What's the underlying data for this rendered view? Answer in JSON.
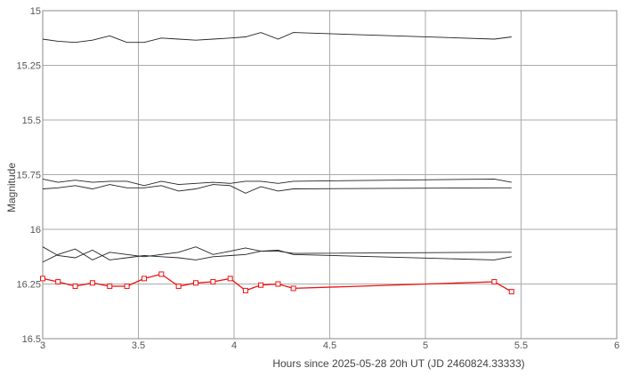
{
  "chart_data": {
    "type": "line",
    "xlabel": "Hours since 2025-05-28 20h UT (JD 2460824.33333)",
    "ylabel": "Magnitude",
    "xlim": [
      3,
      6
    ],
    "ylim": [
      15,
      16.5
    ],
    "y_inverted": true,
    "grid": true,
    "x_ticks": [
      "3",
      "3.5",
      "4",
      "4.5",
      "5",
      "5.5",
      "6"
    ],
    "y_ticks": [
      "15",
      "15.25",
      "15.5",
      "15.75",
      "16",
      "16.25",
      "16.5"
    ],
    "colors": {
      "comparison": "#222222",
      "target": "#ee1111",
      "grid": "#aaaaaa"
    },
    "series": [
      {
        "role": "comparison",
        "x": [
          3.0,
          3.08,
          3.17,
          3.26,
          3.35,
          3.44,
          3.53,
          3.62,
          3.71,
          3.8,
          3.89,
          3.98,
          4.06,
          4.14,
          4.23,
          4.31,
          5.36,
          5.45
        ],
        "y": [
          15.13,
          15.14,
          15.145,
          15.135,
          15.115,
          15.145,
          15.145,
          15.125,
          15.13,
          15.135,
          15.13,
          15.125,
          15.12,
          15.1,
          15.13,
          15.1,
          15.13,
          15.12
        ]
      },
      {
        "role": "comparison",
        "x": [
          3.0,
          3.08,
          3.17,
          3.26,
          3.35,
          3.44,
          3.53,
          3.62,
          3.71,
          3.8,
          3.89,
          3.98,
          4.06,
          4.14,
          4.23,
          4.31,
          5.36,
          5.45
        ],
        "y": [
          15.77,
          15.785,
          15.775,
          15.785,
          15.78,
          15.78,
          15.8,
          15.78,
          15.795,
          15.79,
          15.785,
          15.79,
          15.78,
          15.78,
          15.79,
          15.78,
          15.77,
          15.785
        ]
      },
      {
        "role": "comparison",
        "x": [
          3.0,
          3.08,
          3.17,
          3.26,
          3.35,
          3.44,
          3.53,
          3.62,
          3.71,
          3.8,
          3.89,
          3.98,
          4.06,
          4.14,
          4.23,
          4.31,
          5.36,
          5.45
        ],
        "y": [
          15.815,
          15.81,
          15.8,
          15.815,
          15.795,
          15.81,
          15.81,
          15.8,
          15.825,
          15.815,
          15.795,
          15.8,
          15.835,
          15.805,
          15.825,
          15.815,
          15.81,
          15.81
        ]
      },
      {
        "role": "comparison",
        "x": [
          3.0,
          3.08,
          3.17,
          3.26,
          3.35,
          3.44,
          3.53,
          3.62,
          3.71,
          3.8,
          3.89,
          3.98,
          4.06,
          4.14,
          4.23,
          4.31,
          5.36,
          5.45
        ],
        "y": [
          16.08,
          16.12,
          16.13,
          16.095,
          16.14,
          16.13,
          16.12,
          16.125,
          16.13,
          16.14,
          16.125,
          16.12,
          16.115,
          16.1,
          16.1,
          16.11,
          16.105,
          16.105
        ]
      },
      {
        "role": "comparison",
        "x": [
          3.0,
          3.08,
          3.17,
          3.26,
          3.35,
          3.44,
          3.53,
          3.62,
          3.71,
          3.8,
          3.89,
          3.98,
          4.06,
          4.14,
          4.23,
          4.31,
          5.36,
          5.45
        ],
        "y": [
          16.15,
          16.115,
          16.09,
          16.14,
          16.105,
          16.115,
          16.125,
          16.115,
          16.105,
          16.08,
          16.115,
          16.1,
          16.085,
          16.1,
          16.095,
          16.115,
          16.14,
          16.125
        ]
      },
      {
        "role": "target",
        "x": [
          3.0,
          3.08,
          3.17,
          3.26,
          3.35,
          3.44,
          3.53,
          3.62,
          3.71,
          3.8,
          3.89,
          3.98,
          4.06,
          4.14,
          4.23,
          4.31,
          5.36,
          5.45
        ],
        "y": [
          16.225,
          16.24,
          16.26,
          16.245,
          16.26,
          16.26,
          16.225,
          16.205,
          16.26,
          16.245,
          16.24,
          16.225,
          16.28,
          16.255,
          16.25,
          16.27,
          16.24,
          16.285
        ]
      }
    ]
  }
}
